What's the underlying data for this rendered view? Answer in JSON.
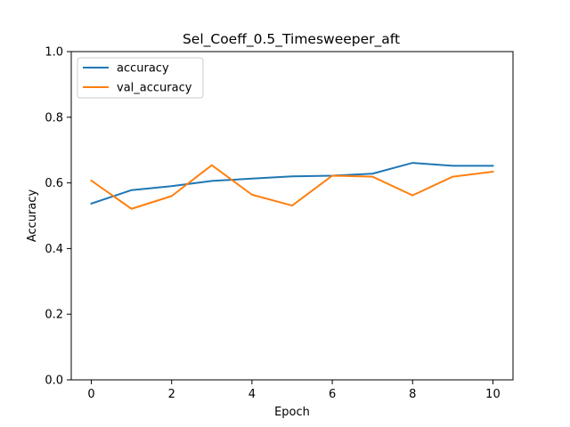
{
  "chart_data": {
    "type": "line",
    "title": "Sel_Coeff_0.5_Timesweeper_aft",
    "xlabel": "Epoch",
    "ylabel": "Accuracy",
    "x": [
      0,
      1,
      2,
      3,
      4,
      5,
      6,
      7,
      8,
      9,
      10
    ],
    "xlim": [
      -0.5,
      10.5
    ],
    "ylim": [
      0.0,
      1.0
    ],
    "xticks": [
      0,
      2,
      4,
      6,
      8,
      10
    ],
    "yticks": [
      0.0,
      0.2,
      0.4,
      0.6,
      0.8,
      1.0
    ],
    "xtick_labels": [
      "0",
      "2",
      "4",
      "6",
      "8",
      "10"
    ],
    "ytick_labels": [
      "0.0",
      "0.2",
      "0.4",
      "0.6",
      "0.8",
      "1.0"
    ],
    "grid": false,
    "legend_position": "upper-left",
    "series": [
      {
        "name": "accuracy",
        "color": "#1f77b4",
        "values": [
          0.537,
          0.578,
          0.59,
          0.606,
          0.613,
          0.62,
          0.622,
          0.628,
          0.661,
          0.652,
          0.652
        ]
      },
      {
        "name": "val_accuracy",
        "color": "#ff7f0e",
        "values": [
          0.607,
          0.521,
          0.56,
          0.654,
          0.564,
          0.531,
          0.622,
          0.619,
          0.562,
          0.619,
          0.634
        ]
      }
    ]
  }
}
